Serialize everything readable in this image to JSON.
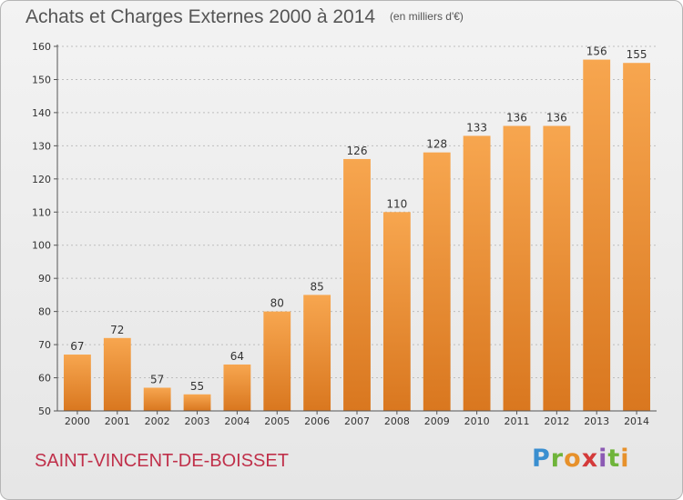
{
  "title": "Achats et Charges Externes 2000 à 2014",
  "subtitle": "(en milliers d'€)",
  "commune": "SAINT-VINCENT-DE-BOISSET",
  "logo_text": "Proxiti",
  "colors": {
    "bar_light": "#f7a64f",
    "bar_dark": "#d9771f",
    "commune_text": "#c0304a",
    "grid": "#bdbdbd"
  },
  "chart_data": {
    "type": "bar",
    "title": "Achats et Charges Externes 2000 à 2014",
    "subtitle": "(en milliers d'€)",
    "categories": [
      "2000",
      "2001",
      "2002",
      "2003",
      "2004",
      "2005",
      "2006",
      "2007",
      "2008",
      "2009",
      "2010",
      "2011",
      "2012",
      "2013",
      "2014"
    ],
    "values": [
      67,
      72,
      57,
      55,
      64,
      80,
      85,
      126,
      110,
      128,
      133,
      136,
      136,
      156,
      155
    ],
    "ylim": [
      50,
      160
    ],
    "yticks": [
      50,
      60,
      70,
      80,
      90,
      100,
      110,
      120,
      130,
      140,
      150,
      160
    ],
    "grid": true,
    "grid_axis": "y",
    "legend": "none"
  }
}
